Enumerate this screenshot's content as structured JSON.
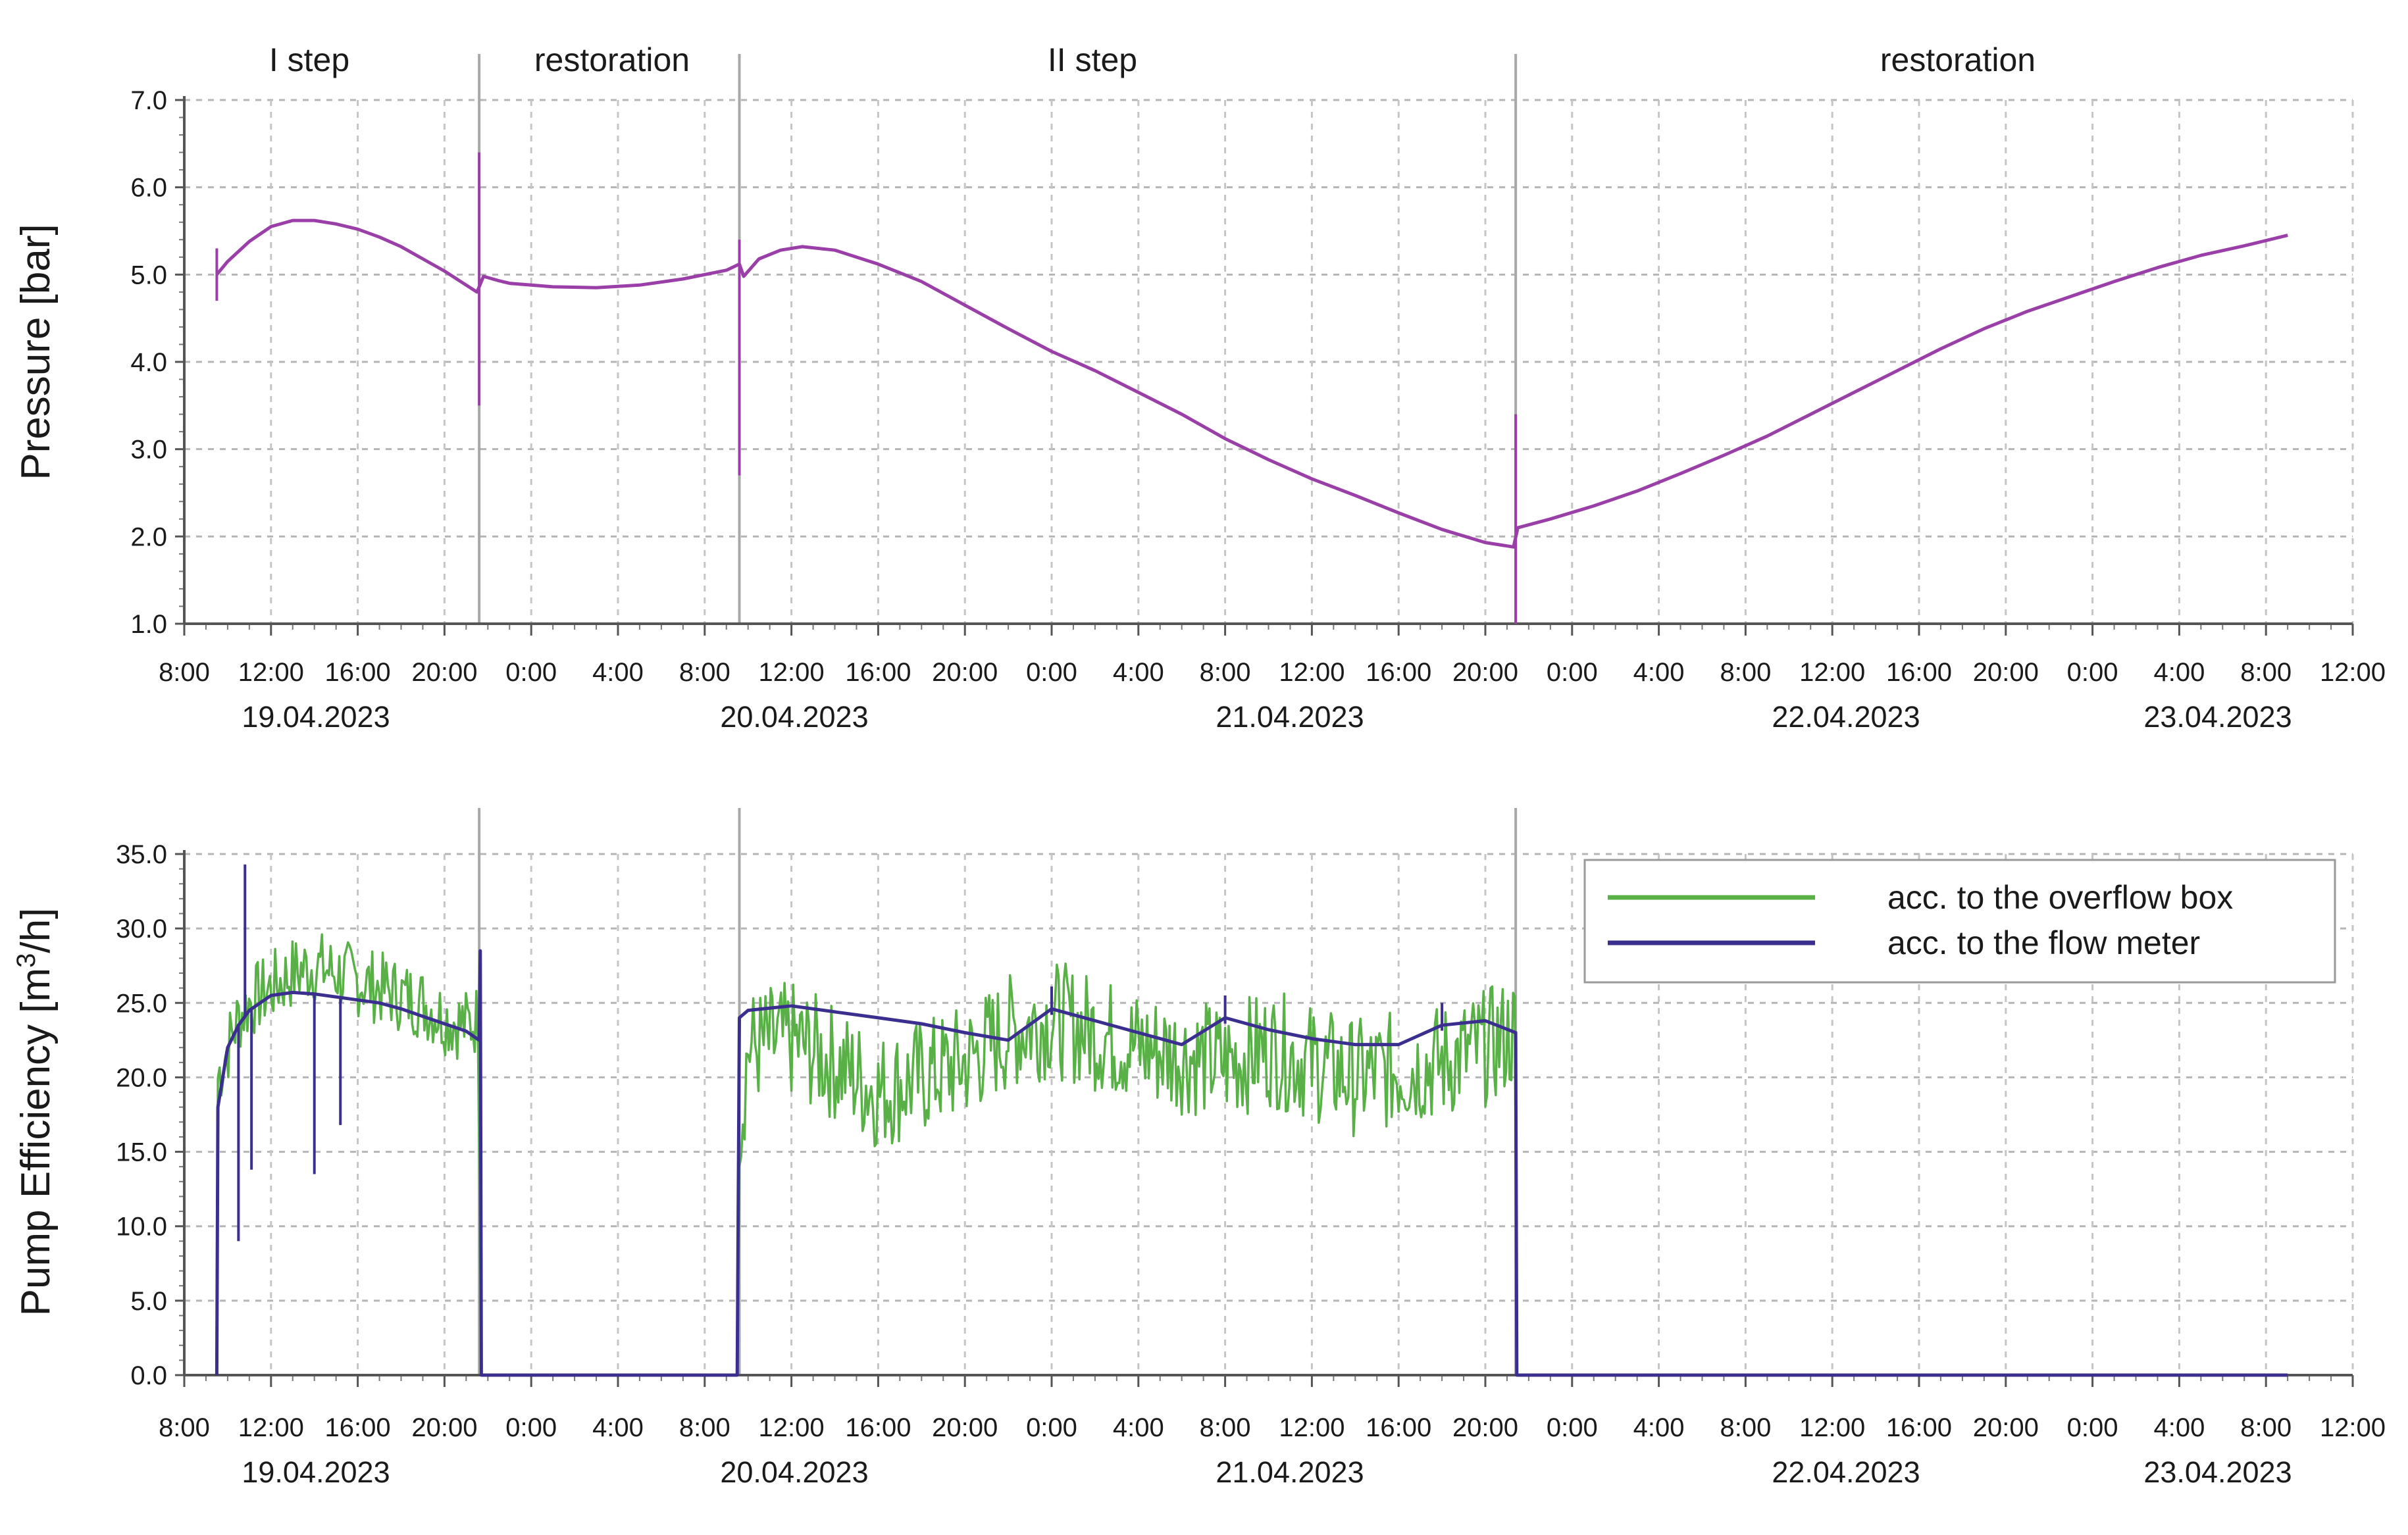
{
  "chart_data": [
    {
      "type": "line",
      "ylabel": "Pressure [bar]",
      "ylim": [
        1.0,
        7.0
      ],
      "ytick_labels": [
        "1.0",
        "2.0",
        "3.0",
        "4.0",
        "5.0",
        "6.0",
        "7.0"
      ],
      "xlim_hours": [
        0,
        100
      ],
      "xtick_labels": [
        "8:00",
        "12:00",
        "16:00",
        "20:00",
        "0:00",
        "4:00",
        "8:00",
        "12:00",
        "16:00",
        "20:00",
        "0:00",
        "4:00",
        "8:00",
        "12:00",
        "16:00",
        "20:00",
        "0:00",
        "4:00",
        "8:00",
        "12:00",
        "16:00",
        "20:00",
        "0:00",
        "4:00",
        "8:00",
        "12:00"
      ],
      "date_labels": [
        "19.04.2023",
        "20.04.2023",
        "21.04.2023",
        "22.04.2023",
        "23.04.2023"
      ],
      "phases": [
        "I step",
        "restoration",
        "II step",
        "restoration"
      ],
      "phase_boundaries_hours": [
        13.6,
        25.6,
        61.4
      ],
      "grid": true,
      "series": [
        {
          "color": "#9b3fa8",
          "points": [
            [
              1.5,
              5.0
            ],
            [
              2,
              5.15
            ],
            [
              3,
              5.38
            ],
            [
              4,
              5.55
            ],
            [
              5,
              5.62
            ],
            [
              6,
              5.62
            ],
            [
              7,
              5.58
            ],
            [
              8,
              5.52
            ],
            [
              9,
              5.43
            ],
            [
              10,
              5.32
            ],
            [
              11,
              5.18
            ],
            [
              12,
              5.04
            ],
            [
              13,
              4.88
            ],
            [
              13.5,
              4.8
            ],
            [
              13.8,
              4.98
            ],
            [
              14.5,
              4.93
            ],
            [
              15,
              4.9
            ],
            [
              17,
              4.86
            ],
            [
              19,
              4.85
            ],
            [
              21,
              4.88
            ],
            [
              23,
              4.95
            ],
            [
              25,
              5.05
            ],
            [
              25.6,
              5.12
            ],
            [
              25.8,
              4.98
            ],
            [
              26.5,
              5.18
            ],
            [
              27.5,
              5.28
            ],
            [
              28.5,
              5.32
            ],
            [
              30,
              5.28
            ],
            [
              32,
              5.12
            ],
            [
              34,
              4.92
            ],
            [
              36,
              4.65
            ],
            [
              38,
              4.38
            ],
            [
              40,
              4.12
            ],
            [
              42,
              3.9
            ],
            [
              44,
              3.65
            ],
            [
              46,
              3.4
            ],
            [
              48,
              3.12
            ],
            [
              50,
              2.88
            ],
            [
              52,
              2.66
            ],
            [
              54,
              2.47
            ],
            [
              56,
              2.27
            ],
            [
              58,
              2.08
            ],
            [
              60,
              1.93
            ],
            [
              61.3,
              1.88
            ],
            [
              61.5,
              2.1
            ],
            [
              63,
              2.2
            ],
            [
              65,
              2.35
            ],
            [
              67,
              2.52
            ],
            [
              69,
              2.72
            ],
            [
              71,
              2.93
            ],
            [
              73,
              3.15
            ],
            [
              75,
              3.4
            ],
            [
              77,
              3.65
            ],
            [
              79,
              3.9
            ],
            [
              81,
              4.15
            ],
            [
              83,
              4.38
            ],
            [
              85,
              4.58
            ],
            [
              87,
              4.75
            ],
            [
              89,
              4.92
            ],
            [
              91,
              5.08
            ],
            [
              93,
              5.22
            ],
            [
              95,
              5.33
            ],
            [
              97,
              5.45
            ]
          ]
        }
      ]
    },
    {
      "type": "line",
      "ylabel": "Pump Efficiency [m³/h]",
      "ylim": [
        0.0,
        35.0
      ],
      "ytick_labels": [
        "0.0",
        "5.0",
        "10.0",
        "15.0",
        "20.0",
        "25.0",
        "30.0",
        "35.0"
      ],
      "xlim_hours": [
        0,
        100
      ],
      "xtick_labels": [
        "8:00",
        "12:00",
        "16:00",
        "20:00",
        "0:00",
        "4:00",
        "8:00",
        "12:00",
        "16:00",
        "20:00",
        "0:00",
        "4:00",
        "8:00",
        "12:00",
        "16:00",
        "20:00",
        "0:00",
        "4:00",
        "8:00",
        "12:00",
        "16:00",
        "20:00",
        "0:00",
        "4:00",
        "8:00",
        "12:00"
      ],
      "date_labels": [
        "19.04.2023",
        "20.04.2023",
        "21.04.2023",
        "22.04.2023",
        "23.04.2023"
      ],
      "grid": true,
      "legend_position": "top-right",
      "series": [
        {
          "name": "acc. to the overflow box",
          "color": "#58b046",
          "points": [
            [
              1.5,
              0
            ],
            [
              1.55,
              20
            ],
            [
              2,
              22
            ],
            [
              2.5,
              24
            ],
            [
              3,
              25
            ],
            [
              4,
              26
            ],
            [
              5,
              27
            ],
            [
              6,
              27.5
            ],
            [
              7,
              27
            ],
            [
              8,
              26.5
            ],
            [
              9,
              26
            ],
            [
              10,
              25.5
            ],
            [
              11,
              25
            ],
            [
              12,
              24
            ],
            [
              13,
              23.5
            ],
            [
              13.6,
              24
            ],
            [
              13.7,
              0
            ],
            [
              25.5,
              0
            ],
            [
              25.6,
              16
            ],
            [
              26,
              22
            ],
            [
              28,
              22.5
            ],
            [
              30,
              21
            ],
            [
              32,
              19
            ],
            [
              34,
              20
            ],
            [
              36,
              21
            ],
            [
              38,
              23
            ],
            [
              40,
              24
            ],
            [
              42,
              23
            ],
            [
              44,
              22
            ],
            [
              46,
              21.5
            ],
            [
              48,
              21
            ],
            [
              50,
              22
            ],
            [
              52,
              21
            ],
            [
              54,
              20
            ],
            [
              56,
              20.5
            ],
            [
              58,
              21
            ],
            [
              60,
              22
            ],
            [
              61.4,
              23
            ],
            [
              61.45,
              0
            ]
          ],
          "noise_amplitude": 2.5
        },
        {
          "name": "acc. to the flow meter",
          "color": "#3a2f8f",
          "points": [
            [
              1.5,
              0
            ],
            [
              1.55,
              18
            ],
            [
              2,
              22
            ],
            [
              2.5,
              23.5
            ],
            [
              3,
              24.5
            ],
            [
              4,
              25.5
            ],
            [
              5,
              25.7
            ],
            [
              6,
              25.6
            ],
            [
              7,
              25.4
            ],
            [
              8,
              25.2
            ],
            [
              9,
              25
            ],
            [
              10,
              24.6
            ],
            [
              11,
              24.1
            ],
            [
              12,
              23.6
            ],
            [
              13,
              23.1
            ],
            [
              13.6,
              22.5
            ],
            [
              13.65,
              28.5
            ],
            [
              13.7,
              0
            ],
            [
              25.5,
              0
            ],
            [
              25.6,
              24
            ],
            [
              26,
              24.5
            ],
            [
              28,
              24.8
            ],
            [
              30,
              24.4
            ],
            [
              32,
              24
            ],
            [
              34,
              23.6
            ],
            [
              36,
              23
            ],
            [
              38,
              22.5
            ],
            [
              40,
              24.6
            ],
            [
              42,
              23.8
            ],
            [
              44,
              23
            ],
            [
              46,
              22.2
            ],
            [
              48,
              24
            ],
            [
              50,
              23.2
            ],
            [
              52,
              22.6
            ],
            [
              54,
              22.2
            ],
            [
              56,
              22.2
            ],
            [
              58,
              23.5
            ],
            [
              60,
              23.8
            ],
            [
              61.4,
              23
            ],
            [
              61.45,
              0
            ],
            [
              97,
              0
            ]
          ],
          "dips": [
            [
              2.5,
              9
            ],
            [
              2.8,
              34.3
            ],
            [
              3.1,
              13.8
            ],
            [
              6.0,
              13.5
            ],
            [
              7.2,
              16.8
            ]
          ]
        }
      ]
    }
  ]
}
